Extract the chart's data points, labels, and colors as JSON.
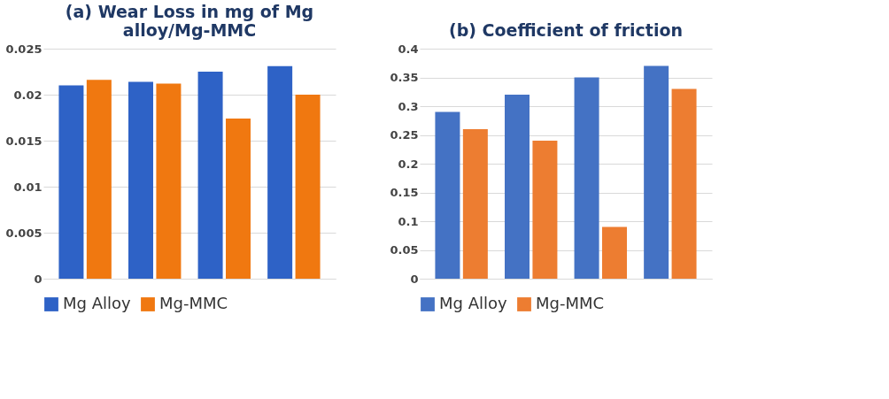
{
  "chart_data": [
    {
      "type": "bar",
      "title": "(a) Wear Loss in mg of Mg alloy/Mg-MMC",
      "categories": [
        null,
        null,
        null,
        null
      ],
      "series": [
        {
          "name": "Mg Alloy",
          "color": "#2e62c6",
          "values": [
            0.021,
            0.0214,
            0.0225,
            0.0231
          ]
        },
        {
          "name": "Mg-MMC",
          "color": "#f07810",
          "values": [
            0.0216,
            0.0212,
            0.0174,
            0.02
          ]
        }
      ],
      "ylim": [
        0,
        0.025
      ],
      "yticks": [
        0,
        0.005,
        0.01,
        0.015,
        0.02,
        0.025
      ],
      "grid": "y",
      "legend": "bottom"
    },
    {
      "type": "bar",
      "title": "(b) Coefficient of friction",
      "categories": [
        null,
        null,
        null,
        null
      ],
      "series": [
        {
          "name": "Mg Alloy",
          "color": "#4472c4",
          "values": [
            0.29,
            0.32,
            0.35,
            0.37
          ]
        },
        {
          "name": "Mg-MMC",
          "color": "#ed7d31",
          "values": [
            0.26,
            0.24,
            0.09,
            0.33
          ]
        }
      ],
      "ylim": [
        0,
        0.4
      ],
      "yticks": [
        0,
        0.05,
        0.1,
        0.15,
        0.2,
        0.25,
        0.3,
        0.35,
        0.4
      ],
      "grid": "y",
      "legend": "bottom"
    }
  ]
}
